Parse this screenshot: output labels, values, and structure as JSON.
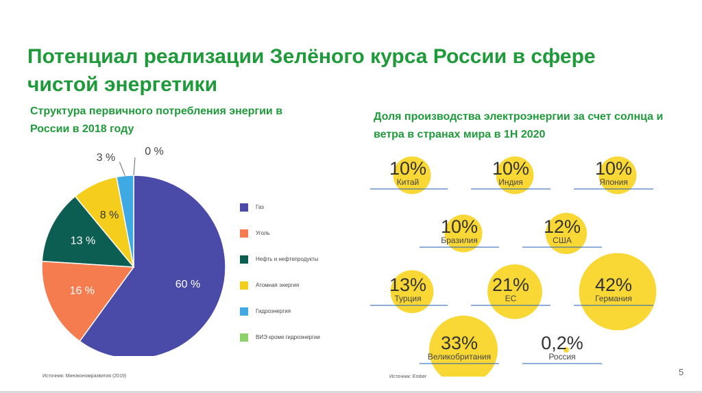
{
  "title": "Потенциал реализации Зелёного курса России в сфере чистой энергетики",
  "page_number": "5",
  "left_panel": {
    "subtitle": "Структура первичного потребления энергии в России в 2018 году",
    "source": "Источник: Минэкономразвития (2019)"
  },
  "right_panel": {
    "subtitle": "Доля производства электроэнергии за счет солнца и ветра в странах мира в 1Н 2020",
    "source": "Источник: Ember"
  },
  "colors": {
    "title": "#1f9a3a",
    "accent_yellow": "#f9d423",
    "rule": "#1f5bb4"
  },
  "chart_data": [
    {
      "type": "pie",
      "title": "Структура первичного потребления энергии в России в 2018 году",
      "categories": [
        "Газ",
        "Уголь",
        "Нефть и нефтепродукты",
        "Атомная энергия",
        "Гидроэнергия",
        "ВИЭ кроме гидроэнергии"
      ],
      "values": [
        60,
        16,
        13,
        8,
        3,
        0
      ],
      "labels": [
        "60 %",
        "16 %",
        "13 %",
        "8 %",
        "3 %",
        "0 %"
      ],
      "colors": [
        "#4a4aa8",
        "#f47c4e",
        "#0d5e52",
        "#f5ce1d",
        "#3ea9e3",
        "#8bd16c"
      ],
      "legend_position": "right"
    },
    {
      "type": "table",
      "title": "Доля производства электроэнергии за счет солнца и ветра в странах мира в 1Н 2020",
      "categories": [
        "Китай",
        "Индия",
        "Япония",
        "Бразилия",
        "США",
        "Турция",
        "ЕС",
        "Германия",
        "Великобритания",
        "Россия"
      ],
      "values": [
        10,
        10,
        10,
        10,
        12,
        13,
        21,
        42,
        33,
        0.2
      ],
      "labels": [
        "10%",
        "10%",
        "10%",
        "10%",
        "12%",
        "13%",
        "21%",
        "42%",
        "33%",
        "0,2%"
      ]
    }
  ]
}
